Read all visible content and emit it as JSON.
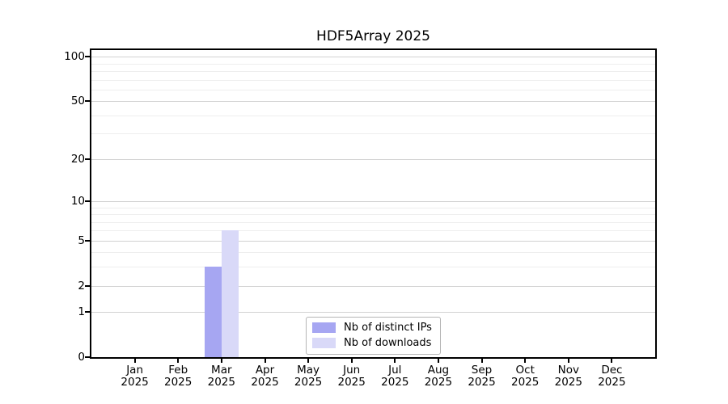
{
  "chart_data": {
    "type": "bar",
    "title": "HDF5Array 2025",
    "categories": [
      "Jan 2025",
      "Feb 2025",
      "Mar 2025",
      "Apr 2025",
      "May 2025",
      "Jun 2025",
      "Jul 2025",
      "Aug 2025",
      "Sep 2025",
      "Oct 2025",
      "Nov 2025",
      "Dec 2025"
    ],
    "series": [
      {
        "name": "Nb of distinct IPs",
        "color": "#a6a6f2",
        "values": [
          0,
          0,
          3,
          0,
          0,
          0,
          0,
          0,
          0,
          0,
          0,
          0
        ]
      },
      {
        "name": "Nb of downloads",
        "color": "#d9d9f8",
        "values": [
          0,
          0,
          6,
          0,
          0,
          0,
          0,
          0,
          0,
          0,
          0,
          0
        ]
      }
    ],
    "xlabel": "",
    "ylabel": "",
    "y_axis": {
      "scale": "log1p",
      "ticks": [
        0,
        1,
        2,
        5,
        10,
        20,
        50,
        100
      ],
      "minor_gridlines": [
        3,
        4,
        6,
        7,
        8,
        9,
        30,
        40,
        60,
        70,
        80,
        90
      ],
      "lim": [
        0,
        111
      ]
    },
    "grid": true,
    "legend_position": "lower center (inside plot)",
    "colors": {
      "axis": "#000000",
      "grid_major": "#d2d2d2",
      "grid_minor": "#eeeeee",
      "legend_border": "#b5b5b5",
      "background": "#ffffff",
      "text": "#000000"
    }
  }
}
